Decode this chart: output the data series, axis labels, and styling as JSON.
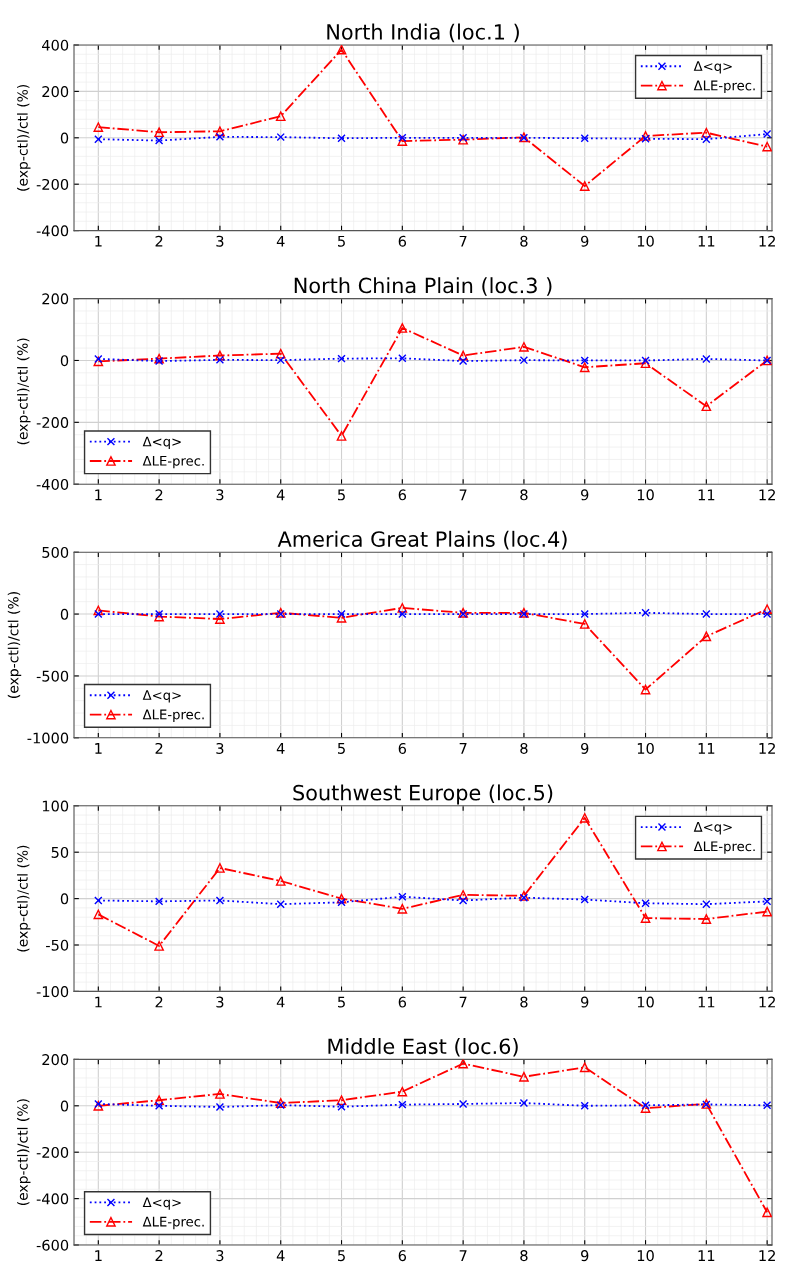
{
  "chart_data": [
    {
      "type": "line",
      "title": "North India (loc.1 )",
      "ylabel": "(exp-ctl)/ctl (%)",
      "x": [
        1,
        2,
        3,
        4,
        5,
        6,
        7,
        8,
        9,
        10,
        11,
        12
      ],
      "xlim": [
        0.6,
        12.08
      ],
      "xticks": [
        1,
        2,
        3,
        4,
        5,
        6,
        7,
        8,
        9,
        10,
        11,
        12
      ],
      "ylim": [
        -400,
        400
      ],
      "yticks": [
        -400,
        -200,
        0,
        200,
        400
      ],
      "grid": true,
      "legend": "top right",
      "series": [
        {
          "name": "Δ<q>",
          "color": "#0000ff",
          "marker": "cross",
          "line_style": "dotted",
          "values": [
            -6,
            -12,
            4,
            3,
            -2,
            0,
            0,
            0,
            -2,
            -4,
            -6,
            16
          ]
        },
        {
          "name": "ΔLE-prec.",
          "color": "#ff0000",
          "marker": "triangle",
          "line_style": "dashed",
          "values": [
            46,
            24,
            28,
            93,
            380,
            -14,
            -8,
            2,
            -208,
            8,
            22,
            -38
          ]
        }
      ]
    },
    {
      "type": "line",
      "title": "North China Plain (loc.3 )",
      "ylabel": "(exp-ctl)/ctl (%)",
      "x": [
        1,
        2,
        3,
        4,
        5,
        6,
        7,
        8,
        9,
        10,
        11,
        12
      ],
      "xlim": [
        0.6,
        12.08
      ],
      "xticks": [
        1,
        2,
        3,
        4,
        5,
        6,
        7,
        8,
        9,
        10,
        11,
        12
      ],
      "ylim": [
        -400,
        200
      ],
      "yticks": [
        -400,
        -200,
        0,
        200
      ],
      "grid": true,
      "legend": "bottom left",
      "series": [
        {
          "name": "Δ<q>",
          "color": "#0000ff",
          "marker": "cross",
          "line_style": "dotted",
          "values": [
            5,
            -2,
            2,
            1,
            6,
            7,
            -2,
            1,
            0,
            0,
            5,
            0
          ]
        },
        {
          "name": "ΔLE-prec.",
          "color": "#ff0000",
          "marker": "triangle",
          "line_style": "dashed",
          "values": [
            -3,
            6,
            16,
            22,
            -244,
            105,
            16,
            44,
            -22,
            -9,
            -148,
            0
          ]
        }
      ]
    },
    {
      "type": "line",
      "title": "America Great Plains (loc.4)",
      "ylabel": "(exp-ctl)/ctl (%)",
      "x": [
        1,
        2,
        3,
        4,
        5,
        6,
        7,
        8,
        9,
        10,
        11,
        12
      ],
      "xlim": [
        0.6,
        12.08
      ],
      "xticks": [
        1,
        2,
        3,
        4,
        5,
        6,
        7,
        8,
        9,
        10,
        11,
        12
      ],
      "ylim": [
        -1000,
        500
      ],
      "yticks": [
        -1000,
        -500,
        0,
        500
      ],
      "grid": true,
      "legend": "bottom left",
      "series": [
        {
          "name": "Δ<q>",
          "color": "#0000ff",
          "marker": "cross",
          "line_style": "dotted",
          "values": [
            0,
            0,
            0,
            0,
            0,
            0,
            0,
            0,
            0,
            10,
            0,
            0
          ]
        },
        {
          "name": "ΔLE-prec.",
          "color": "#ff0000",
          "marker": "triangle",
          "line_style": "dashed",
          "values": [
            30,
            -20,
            -40,
            10,
            -30,
            50,
            10,
            10,
            -80,
            -610,
            -180,
            40
          ]
        }
      ]
    },
    {
      "type": "line",
      "title": "Southwest Europe (loc.5)",
      "ylabel": "(exp-ctl)/ctl (%)",
      "x": [
        1,
        2,
        3,
        4,
        5,
        6,
        7,
        8,
        9,
        10,
        11,
        12
      ],
      "xlim": [
        0.6,
        12.08
      ],
      "xticks": [
        1,
        2,
        3,
        4,
        5,
        6,
        7,
        8,
        9,
        10,
        11,
        12
      ],
      "ylim": [
        -100,
        100
      ],
      "yticks": [
        -100,
        -50,
        0,
        50,
        100
      ],
      "grid": true,
      "legend": "top right",
      "series": [
        {
          "name": "Δ<q>",
          "color": "#0000ff",
          "marker": "cross",
          "line_style": "dotted",
          "values": [
            -2,
            -3,
            -2,
            -6,
            -4,
            2,
            -2,
            1,
            -1,
            -5,
            -6,
            -3
          ]
        },
        {
          "name": "ΔLE-prec.",
          "color": "#ff0000",
          "marker": "triangle",
          "line_style": "dashed",
          "values": [
            -17,
            -51,
            33,
            19,
            0,
            -11,
            4,
            3,
            87,
            -21,
            -22,
            -14
          ]
        }
      ]
    },
    {
      "type": "line",
      "title": "Middle East (loc.6)",
      "ylabel": "(exp-ctl)/ctl (%)",
      "x": [
        1,
        2,
        3,
        4,
        5,
        6,
        7,
        8,
        9,
        10,
        11,
        12
      ],
      "xlim": [
        0.6,
        12.08
      ],
      "xticks": [
        1,
        2,
        3,
        4,
        5,
        6,
        7,
        8,
        9,
        10,
        11,
        12
      ],
      "ylim": [
        -600,
        200
      ],
      "yticks": [
        -600,
        -400,
        -200,
        0,
        200
      ],
      "grid": true,
      "legend": "bottom left",
      "series": [
        {
          "name": "Δ<q>",
          "color": "#0000ff",
          "marker": "cross",
          "line_style": "dotted",
          "values": [
            8,
            0,
            -5,
            3,
            -4,
            5,
            8,
            12,
            0,
            2,
            6,
            2
          ]
        },
        {
          "name": "ΔLE-prec.",
          "color": "#ff0000",
          "marker": "triangle",
          "line_style": "dashed",
          "values": [
            0,
            24,
            51,
            12,
            24,
            61,
            182,
            125,
            166,
            -10,
            8,
            -459
          ]
        }
      ]
    }
  ]
}
